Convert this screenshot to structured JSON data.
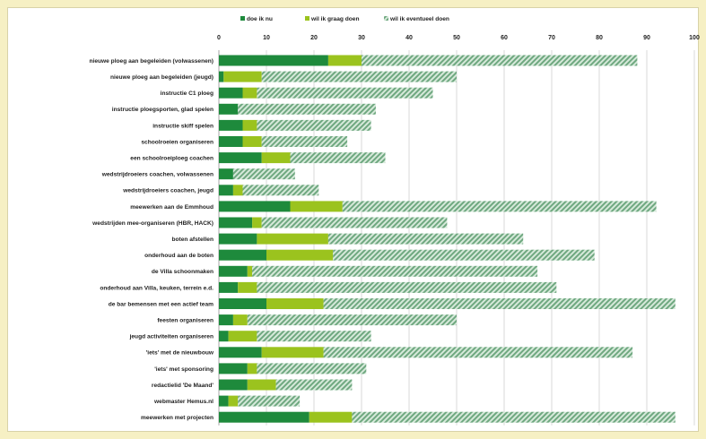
{
  "chart_data": {
    "type": "bar",
    "orientation": "horizontal",
    "stacked": true,
    "legend_position": "top",
    "grid": true,
    "xlim": [
      0,
      100
    ],
    "xticks": [
      0,
      10,
      20,
      30,
      40,
      50,
      60,
      70,
      80,
      90,
      100
    ],
    "colors": [
      "#1e8a3c",
      "#9bc31e",
      "#7fb38e"
    ],
    "categories": [
      "nieuwe ploeg aan begeleiden (volwassenen)",
      "nieuwe ploeg aan begeleiden (jeugd)",
      "instructie C1 ploeg",
      "instructie ploegsporten, glad spelen",
      "instructie skiff spelen",
      "schoolroeien organiseren",
      "een schoolroeiploeg coachen",
      "wedstrijdroeiers coachen, volwassenen",
      "wedstrijdroeiers coachen, jeugd",
      "meewerken aan de Emmhoud",
      "wedstrijden mee-organiseren (HBR, HACK)",
      "boten afstellen",
      "onderhoud aan de boten",
      "de Villa schoonmaken",
      "onderhoud aan Villa, keuken, terrein e.d.",
      "de bar bemensen met een actief team",
      "feesten organiseren",
      "jeugd activiteiten organiseren",
      "'iets' met de nieuwbouw",
      "'iets' met sponsoring",
      "redactielid 'De Maand'",
      "webmaster Hemus.nl",
      "meewerken met projecten"
    ],
    "series": [
      {
        "name": "doe ik nu",
        "values": [
          23,
          1,
          5,
          4,
          5,
          5,
          9,
          3,
          3,
          15,
          7,
          8,
          10,
          6,
          4,
          10,
          3,
          2,
          9,
          6,
          6,
          2,
          19
        ]
      },
      {
        "name": "wil ik graag doen",
        "values": [
          7,
          8,
          3,
          0,
          3,
          4,
          6,
          0,
          2,
          11,
          2,
          15,
          14,
          1,
          4,
          12,
          3,
          6,
          13,
          2,
          6,
          2,
          9
        ]
      },
      {
        "name": "wil ik eventueel doen",
        "values": [
          58,
          41,
          37,
          29,
          24,
          18,
          20,
          13,
          16,
          66,
          39,
          41,
          55,
          60,
          63,
          74,
          44,
          24,
          65,
          23,
          16,
          13,
          68
        ]
      }
    ]
  }
}
